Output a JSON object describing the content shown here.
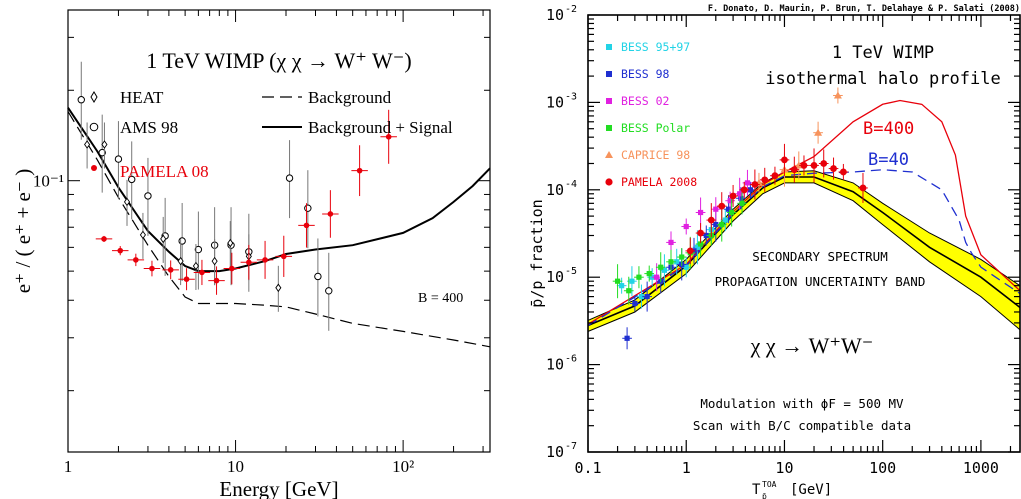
{
  "chart_data": [
    {
      "type": "scatter",
      "title": "1 TeV WIMP (χ χ → W⁺ W⁻)",
      "xlabel": "Energy [GeV]",
      "ylabel": "e⁺ / ( e⁺ + e⁻ )",
      "x_scale": "log",
      "y_scale": "log",
      "xlim": [
        1,
        330
      ],
      "ylim": [
        0.0125,
        0.37
      ],
      "x_tick_labels": [
        "1",
        "10",
        "10²"
      ],
      "y_tick_labels": [
        "10⁻¹"
      ],
      "annotation": "B = 400",
      "legend": [
        {
          "label": "HEAT",
          "marker": "diamond-open",
          "color": "#000000"
        },
        {
          "label": "AMS 98",
          "marker": "circle-open",
          "color": "#000000"
        },
        {
          "label": "PAMELA 08",
          "marker": "filled-dot",
          "color": "#e8000b"
        },
        {
          "label": "Background",
          "line": "dashed",
          "color": "#000000"
        },
        {
          "label": "Background + Signal",
          "line": "solid",
          "color": "#000000"
        }
      ],
      "series": [
        {
          "name": "PAMELA 08",
          "color": "#e8000b",
          "x": [
            1.64,
            2.05,
            2.54,
            3.17,
            4.1,
            5.1,
            6.3,
            7.7,
            9.5,
            12.0,
            15.0,
            19.4,
            26.5,
            36.8,
            55.0,
            82.0
          ],
          "y": [
            0.064,
            0.0585,
            0.0545,
            0.051,
            0.0505,
            0.047,
            0.0495,
            0.0465,
            0.051,
            0.0535,
            0.0545,
            0.056,
            0.071,
            0.0775,
            0.108,
            0.14
          ]
        },
        {
          "name": "AMS 98",
          "x": [
            1.2,
            1.6,
            2.0,
            2.4,
            3.0,
            3.8,
            4.8,
            6.0,
            7.5,
            9.4,
            12.0,
            21.0,
            27.0,
            31.0,
            36.0
          ],
          "y": [
            0.186,
            0.124,
            0.118,
            0.101,
            0.089,
            0.0655,
            0.063,
            0.059,
            0.061,
            0.061,
            0.058,
            0.102,
            0.081,
            0.048,
            0.043
          ]
        },
        {
          "name": "HEAT",
          "x": [
            1.3,
            1.65,
            2.25,
            2.8,
            3.7,
            4.7,
            5.8,
            7.5,
            9.3,
            12.0,
            18.0
          ],
          "y": [
            0.132,
            0.132,
            0.085,
            0.066,
            0.064,
            0.054,
            0.052,
            0.054,
            0.062,
            0.056,
            0.044
          ]
        },
        {
          "name": "Background",
          "x": [
            1,
            1.5,
            2,
            3,
            4,
            5,
            6,
            8,
            10,
            15,
            20,
            30,
            50,
            100,
            200,
            330
          ],
          "y": [
            0.17,
            0.117,
            0.088,
            0.061,
            0.048,
            0.041,
            0.039,
            0.039,
            0.039,
            0.0385,
            0.038,
            0.036,
            0.0335,
            0.0315,
            0.0295,
            0.028
          ]
        },
        {
          "name": "Background + Signal",
          "x": [
            1,
            1.5,
            2,
            3,
            4,
            5,
            6,
            8,
            10,
            15,
            20,
            30,
            50,
            100,
            150,
            200,
            260,
            330
          ],
          "y": [
            0.175,
            0.125,
            0.095,
            0.068,
            0.058,
            0.052,
            0.05,
            0.05,
            0.051,
            0.054,
            0.057,
            0.059,
            0.061,
            0.067,
            0.075,
            0.085,
            0.096,
            0.11
          ]
        }
      ]
    },
    {
      "type": "scatter",
      "credit": "F. Donato, D. Maurin, P. Brun, T. Delahaye & P. Salati (2008)",
      "title_lines": [
        "1 TeV WIMP",
        "isothermal halo profile"
      ],
      "xlabel": "T",
      "xlabel_sup": "TOA",
      "xlabel_sub": "p̄",
      "xlabel_unit": "[GeV]",
      "ylabel": "p̄/p fraction",
      "x_scale": "log",
      "y_scale": "log",
      "xlim": [
        0.1,
        2500
      ],
      "ylim": [
        1e-07,
        0.01
      ],
      "x_tick_labels": [
        "0.1",
        "1",
        "10",
        "100",
        "1000"
      ],
      "y_tick_labels": [
        "10",
        "10",
        "10",
        "10",
        "10",
        "10"
      ],
      "y_tick_exponents": [
        "-7",
        "-6",
        "-5",
        "-4",
        "-3",
        "-2"
      ],
      "annotations": {
        "band_line1": "SECONDARY SPECTRUM",
        "band_line2": "PROPAGATION UNCERTAINTY BAND",
        "process": "χ  χ → W⁺W⁻",
        "modulation": "Modulation with ϕF = 500 MV",
        "scan": "Scan with B/C compatible data",
        "b400": "B=400",
        "b40": "B=40"
      },
      "legend": [
        {
          "label": "BESS 95+97",
          "color": "#22d3e6"
        },
        {
          "label": "BESS 98",
          "color": "#1f2fd0"
        },
        {
          "label": "BESS 02",
          "color": "#e020e0"
        },
        {
          "label": "BESS Polar",
          "color": "#22dd22"
        },
        {
          "label": "CAPRICE 98",
          "color": "#f7935c"
        },
        {
          "label": "PAMELA 2008",
          "color": "#e8000b"
        }
      ],
      "band_color": "#ffff00",
      "band_upper": {
        "x": [
          0.1,
          0.3,
          1,
          3,
          6,
          10,
          20,
          50,
          100,
          300,
          1000,
          2500
        ],
        "y": [
          3.2e-06,
          5.5e-06,
          1.6e-05,
          6e-05,
          0.00012,
          0.00016,
          0.000165,
          0.00012,
          7e-05,
          3.2e-05,
          1.6e-05,
          8e-06
        ]
      },
      "band_lower": {
        "x": [
          0.1,
          0.3,
          1,
          3,
          6,
          10,
          20,
          50,
          100,
          300,
          1000,
          2500
        ],
        "y": [
          2.4e-06,
          4e-06,
          1.1e-05,
          4.4e-05,
          9e-05,
          0.00012,
          0.00012,
          7.5e-05,
          4e-05,
          1.5e-05,
          6e-06,
          2.5e-06
        ]
      },
      "curve_secondary": {
        "x": [
          0.1,
          0.3,
          1,
          3,
          6,
          10,
          20,
          50,
          100,
          300,
          1000,
          2500
        ],
        "y": [
          2.8e-06,
          4.7e-06,
          1.35e-05,
          5.2e-05,
          0.000105,
          0.00014,
          0.00014,
          9.5e-05,
          5.5e-05,
          2.2e-05,
          1e-05,
          4.5e-06
        ]
      },
      "curve_b400": {
        "x": [
          0.1,
          1,
          3,
          6,
          10,
          20,
          50,
          100,
          150,
          250,
          400,
          550,
          700,
          1000,
          2500
        ],
        "y": [
          2.9e-06,
          1.4e-05,
          5.6e-05,
          0.000115,
          0.00016,
          0.00024,
          0.0006,
          0.00095,
          0.00105,
          0.00095,
          0.0006,
          0.00025,
          5e-05,
          1.8e-05,
          7e-06
        ]
      },
      "curve_b40": {
        "x": [
          0.1,
          1,
          3,
          6,
          10,
          20,
          50,
          100,
          200,
          400,
          600,
          700,
          800,
          1000,
          2500
        ],
        "y": [
          2.8e-06,
          1.35e-05,
          5.3e-05,
          0.000108,
          0.000145,
          0.000155,
          0.00016,
          0.00017,
          0.00016,
          0.0001,
          4.5e-05,
          2.5e-05,
          1.9e-05,
          1.3e-05,
          6.5e-06
        ]
      },
      "series": [
        {
          "name": "BESS 95+97",
          "color": "#22d3e6",
          "x": [
            0.22,
            0.28,
            0.35,
            0.45,
            0.6,
            0.8,
            1.0,
            1.3,
            1.8,
            2.5
          ],
          "y": [
            8e-06,
            9e-06,
            6e-06,
            1e-05,
            1.2e-05,
            1.5e-05,
            1.3e-05,
            2.2e-05,
            3.5e-05,
            4.5e-05
          ]
        },
        {
          "name": "BESS 98",
          "color": "#1f2fd0",
          "x": [
            0.25,
            0.3,
            0.4,
            0.55,
            0.7,
            0.9,
            1.2,
            1.6,
            2.0,
            2.7,
            3.6,
            4.5
          ],
          "y": [
            2e-06,
            5e-06,
            6e-06,
            9e-06,
            1.3e-05,
            1.4e-05,
            2e-05,
            3e-05,
            4e-05,
            6e-05,
            8e-05,
            0.0001
          ]
        },
        {
          "name": "BESS 02",
          "color": "#e020e0",
          "x": [
            0.5,
            0.7,
            1.0,
            1.4,
            2.0,
            2.8,
            3.5,
            4.2
          ],
          "y": [
            1e-05,
            2.5e-05,
            3.8e-05,
            5.5e-05,
            6e-05,
            7.5e-05,
            9e-05,
            0.00012
          ]
        },
        {
          "name": "BESS Polar",
          "color": "#22dd22",
          "x": [
            0.2,
            0.26,
            0.33,
            0.42,
            0.55,
            0.7,
            0.9,
            1.1,
            1.4,
            1.8,
            2.3,
            2.9,
            3.7
          ],
          "y": [
            9e-06,
            7e-06,
            1e-05,
            1.1e-05,
            1.3e-05,
            1.5e-05,
            1.7e-05,
            1.9e-05,
            2.4e-05,
            3e-05,
            4e-05,
            5.5e-05,
            7e-05
          ]
        },
        {
          "name": "CAPRICE 98",
          "color": "#f7935c",
          "x": [
            5.5,
            10,
            14,
            22,
            35
          ],
          "y": [
            0.00012,
            0.00017,
            0.00019,
            0.00045,
            0.0012
          ]
        },
        {
          "name": "PAMELA 2008",
          "color": "#e8000b",
          "x": [
            1.1,
            1.4,
            1.8,
            2.3,
            3.0,
            3.9,
            5.0,
            6.3,
            8.0,
            10.0,
            12.6,
            15.8,
            20.0,
            25.1,
            31.6,
            39.8,
            63.0
          ],
          "y": [
            2e-05,
            3.2e-05,
            4.5e-05,
            6.5e-05,
            8.5e-05,
            0.0001,
            0.000115,
            0.00013,
            0.000145,
            0.00022,
            0.00017,
            0.00019,
            0.00019,
            0.0002,
            0.000175,
            0.00016,
            0.000105
          ]
        }
      ]
    }
  ]
}
